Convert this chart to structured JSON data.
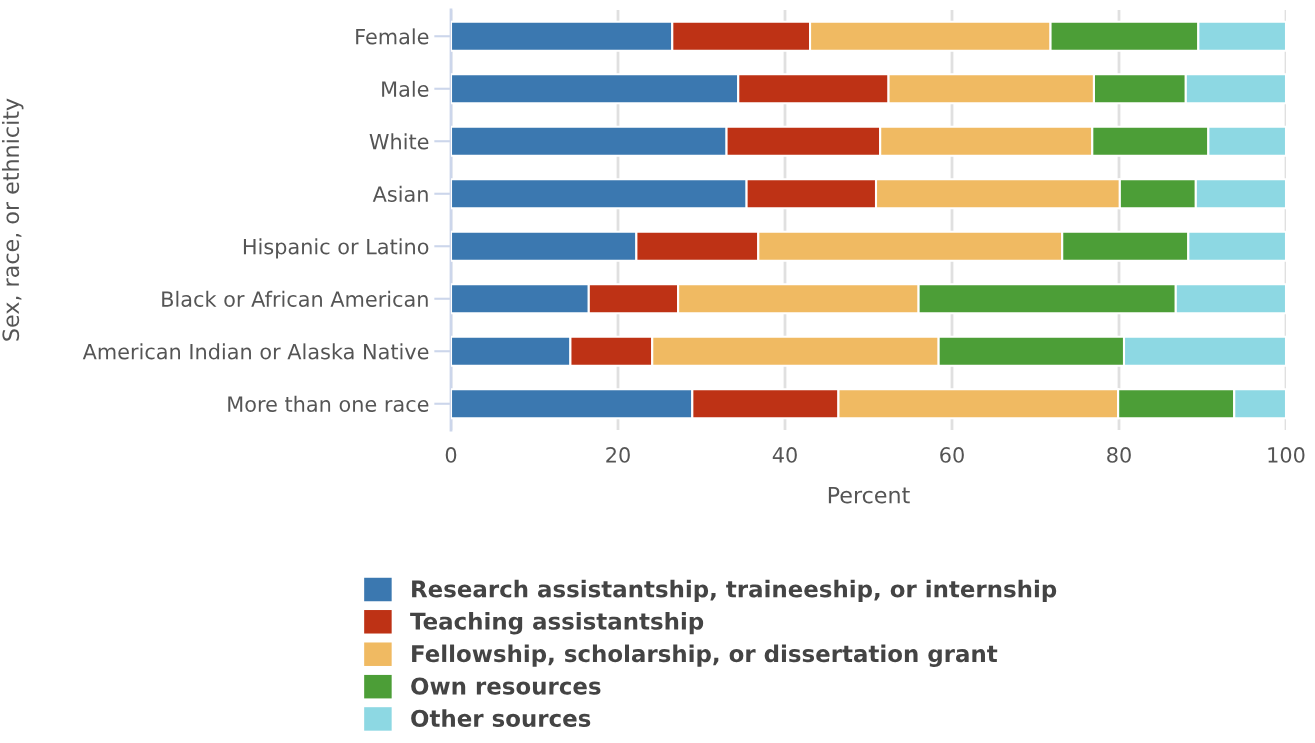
{
  "chart_data": {
    "type": "bar",
    "orientation": "horizontal",
    "stacked": true,
    "xlabel": "Percent",
    "ylabel": "Sex, race, or ethnicity",
    "categories": [
      "Female",
      "Male",
      "White",
      "Asian",
      "Hispanic or Latino",
      "Black or African American",
      "American Indian or Alaska Native",
      "More than one race"
    ],
    "series": [
      {
        "name": "Research assistantship, traineeship, or internship",
        "color": "#3b78b0",
        "values": [
          26.5,
          34.4,
          33.0,
          35.4,
          22.2,
          16.5,
          14.3,
          28.9
        ]
      },
      {
        "name": "Teaching assistantship",
        "color": "#be3215",
        "values": [
          16.5,
          18.0,
          18.4,
          15.5,
          14.6,
          10.7,
          9.8,
          17.5
        ]
      },
      {
        "name": "Fellowship, scholarship, or dissertation grant",
        "color": "#f0ba62",
        "values": [
          28.8,
          24.6,
          25.4,
          29.2,
          36.4,
          28.8,
          34.3,
          33.5
        ]
      },
      {
        "name": "Own resources",
        "color": "#4c9e37",
        "values": [
          17.7,
          11.0,
          13.9,
          9.1,
          15.1,
          30.8,
          22.2,
          13.9
        ]
      },
      {
        "name": "Other sources",
        "color": "#8dd8e3",
        "values": [
          10.5,
          12.0,
          9.3,
          10.8,
          11.7,
          13.2,
          19.4,
          6.2
        ]
      }
    ],
    "xlim": [
      0,
      100
    ],
    "xticks": [
      0,
      20,
      40,
      60,
      80,
      100
    ],
    "grid": "x",
    "legend": "bottom"
  }
}
